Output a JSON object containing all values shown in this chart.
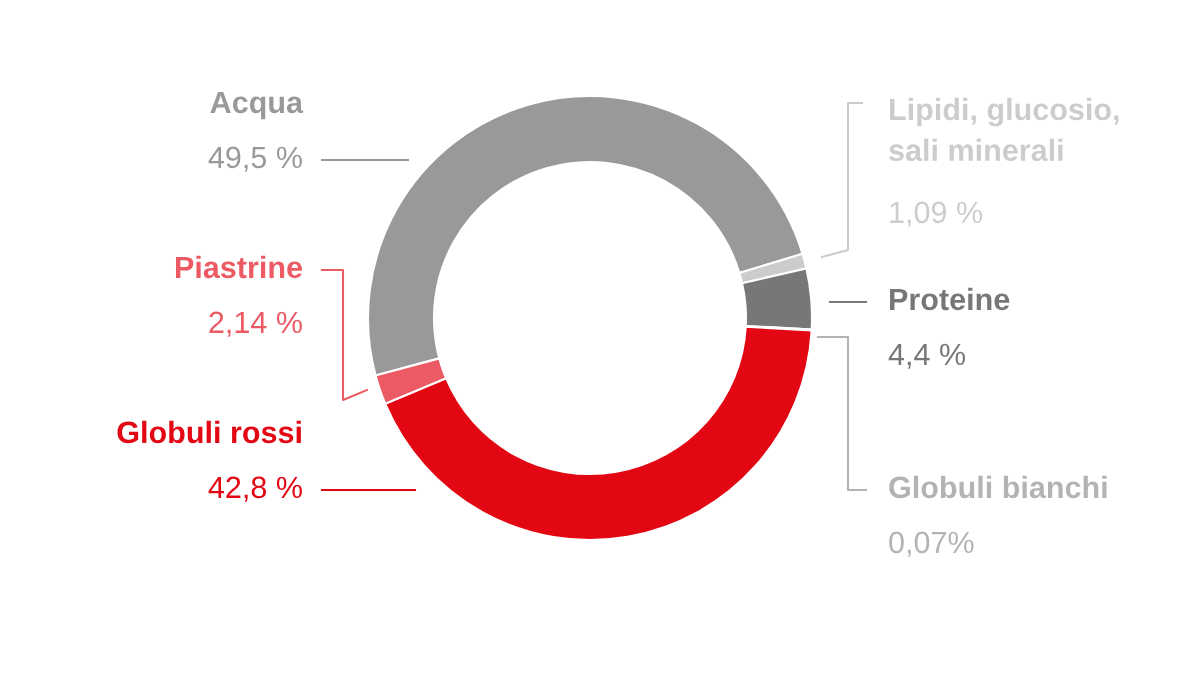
{
  "chart_data": {
    "type": "donut",
    "categories": [
      "Acqua",
      "Lipidi, glucosio,\nsali minerali",
      "Proteine",
      "Globuli bianchi",
      "Globuli rossi",
      "Piastrine"
    ],
    "values": [
      49.5,
      1.09,
      4.4,
      0.07,
      42.8,
      2.14
    ],
    "colors": [
      "#999999",
      "#cccccc",
      "#777777",
      "#b3b3b3",
      "#e30613",
      "#ec5a64"
    ],
    "value_labels": [
      "49,5 %",
      "1,09 %",
      "4,4 %",
      "0,07%",
      "42,8 %",
      "2,14 %"
    ],
    "legend": false
  }
}
